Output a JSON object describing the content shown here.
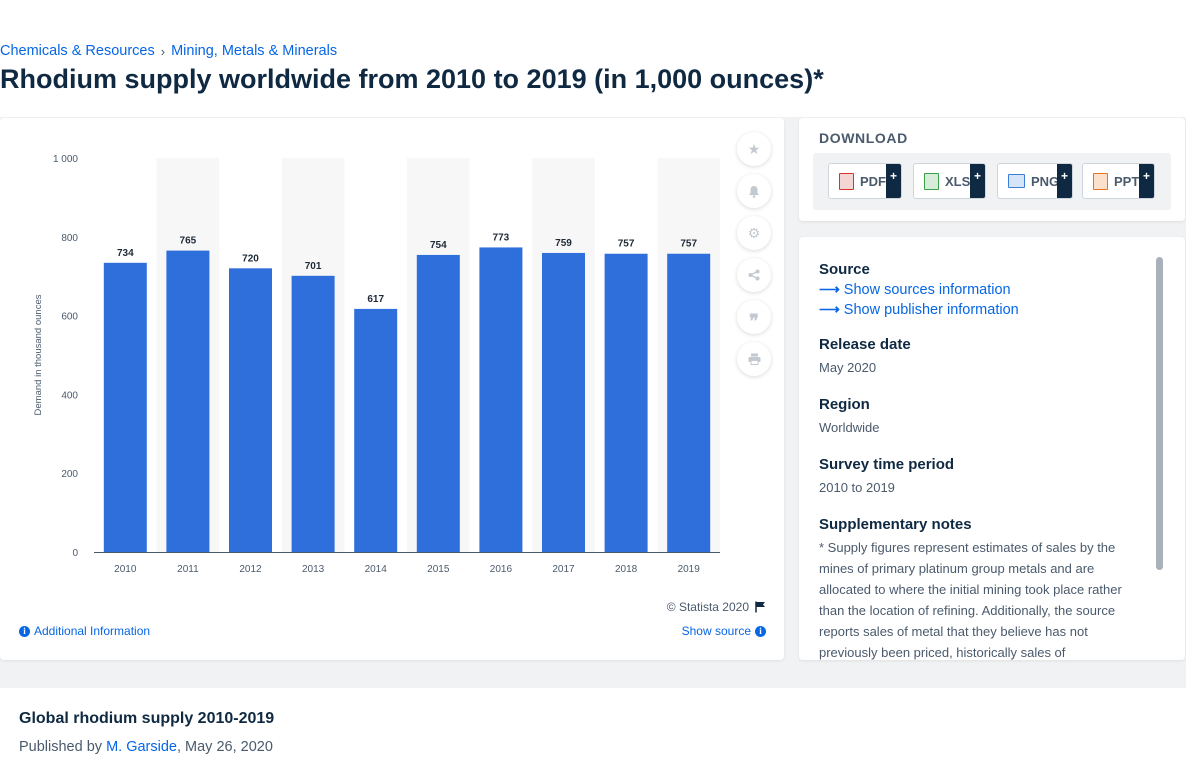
{
  "breadcrumb": {
    "items": [
      "Chemicals & Resources",
      "Mining, Metals & Minerals"
    ],
    "separator": "›"
  },
  "page_title": "Rhodium supply worldwide from 2010 to 2019 (in 1,000 ounces)*",
  "chart_footer": {
    "copyright": "© Statista 2020",
    "additional_info": "Additional Information",
    "show_source": "Show source"
  },
  "download": {
    "title": "DOWNLOAD",
    "formats": [
      {
        "label": "PDF",
        "color": "#d9322e"
      },
      {
        "label": "XLS",
        "color": "#38a046"
      },
      {
        "label": "PNG",
        "color": "#3b7dd8"
      },
      {
        "label": "PPT",
        "color": "#e8731c"
      }
    ],
    "plus": "+"
  },
  "info": {
    "source_label": "Source",
    "show_sources": "Show sources information",
    "show_publisher": "Show publisher information",
    "release_label": "Release date",
    "release_value": "May 2020",
    "region_label": "Region",
    "region_value": "Worldwide",
    "period_label": "Survey time period",
    "period_value": "2010 to 2019",
    "notes_label": "Supplementary notes",
    "notes_value": "* Supply figures represent estimates of sales by the mines of primary platinum group metals and are allocated to where the initial mining took place rather than the location of refining. Additionally, the source reports sales of metal that they believe has not previously been priced, historically sales of"
  },
  "bottom": {
    "title": "Global rhodium supply 2010-2019",
    "published_prefix": "Published by",
    "author": "M. Garside",
    "date": ", May 26, 2020"
  },
  "tool_icons": [
    "star-icon",
    "bell-icon",
    "gear-icon",
    "share-icon",
    "quote-icon",
    "print-icon"
  ],
  "colors": {
    "bar": "#2f6fdb",
    "accent": "#0666e5",
    "title": "#0f2942"
  },
  "chart_data": {
    "type": "bar",
    "categories": [
      "2010",
      "2011",
      "2012",
      "2013",
      "2014",
      "2015",
      "2016",
      "2017",
      "2018",
      "2019"
    ],
    "values": [
      734,
      765,
      720,
      701,
      617,
      754,
      773,
      759,
      757,
      757
    ],
    "ylabel": "Demand in thousand ounces",
    "ylim": [
      0,
      1000
    ],
    "yticks": [
      0,
      200,
      400,
      600,
      800,
      1000
    ],
    "ytick_labels": [
      "0",
      "200",
      "400",
      "600",
      "800",
      "1 000"
    ],
    "data_labels": true,
    "grid": false
  }
}
